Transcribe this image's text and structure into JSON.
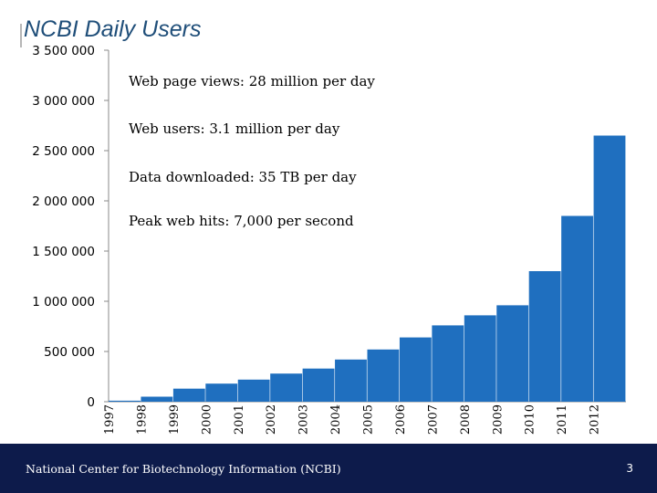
{
  "chart_data": {
    "type": "bar",
    "title": "NCBI Daily Users",
    "xlabel": "",
    "ylabel": "",
    "ylim": [
      0,
      3500000
    ],
    "y_ticks": [
      "3 500 000",
      "3 000 000",
      "2 500 000",
      "2 000 000",
      "1 500 000",
      "1 000 000",
      "500 000",
      "0"
    ],
    "y_tick_values": [
      3500000,
      3000000,
      2500000,
      2000000,
      1500000,
      1000000,
      500000,
      0
    ],
    "categories": [
      "1997",
      "1998",
      "1999",
      "2000",
      "2001",
      "2002",
      "2003",
      "2004",
      "2005",
      "2006",
      "2007",
      "2008",
      "2009",
      "2010",
      "2011",
      "2012"
    ],
    "series": [
      {
        "name": "Daily users",
        "color": "#1f6fbf",
        "values": [
          10000,
          50000,
          130000,
          180000,
          220000,
          280000,
          330000,
          420000,
          520000,
          640000,
          760000,
          860000,
          960000,
          1300000,
          1850000,
          2650000
        ]
      }
    ],
    "annotations": [
      "Web page views: 28 million per day",
      "Web users: 3.1 million per day",
      "Data downloaded: 35 TB per day",
      "Peak web hits: 7,000 per second"
    ],
    "grid": false,
    "legend": "none"
  },
  "footer": {
    "org_name": "National Center for Biotechnology Information (NCBI)",
    "page_number": "3"
  },
  "colors": {
    "bar": "#1f6fbf",
    "footer_bg": "#0d1b4b",
    "title": "#1f4e79"
  }
}
